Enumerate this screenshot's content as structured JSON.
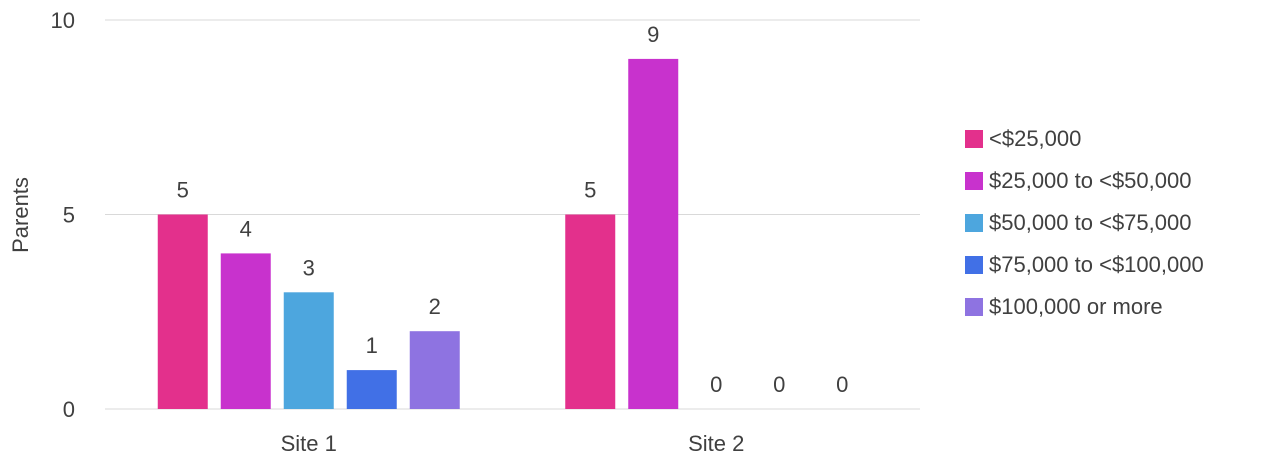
{
  "chart_data": {
    "type": "bar",
    "title": "",
    "xlabel": "",
    "ylabel": "Parents",
    "ylim": [
      0,
      10
    ],
    "yticks": [
      0,
      5,
      10
    ],
    "categories": [
      "Site 1",
      "Site 2"
    ],
    "grid": true,
    "legend_position": "right",
    "series": [
      {
        "name": "<$25,000",
        "color": "#E3308C",
        "values": [
          5,
          5
        ]
      },
      {
        "name": "$25,000 to <$50,000",
        "color": "#C832CD",
        "values": [
          4,
          9
        ]
      },
      {
        "name": "$50,000 to <$75,000",
        "color": "#4DA6DE",
        "values": [
          3,
          0
        ]
      },
      {
        "name": "$75,000 to <$100,000",
        "color": "#4170E6",
        "values": [
          1,
          0
        ]
      },
      {
        "name": "$100,000 or more",
        "color": "#8E73E1",
        "values": [
          2,
          0
        ]
      }
    ]
  }
}
